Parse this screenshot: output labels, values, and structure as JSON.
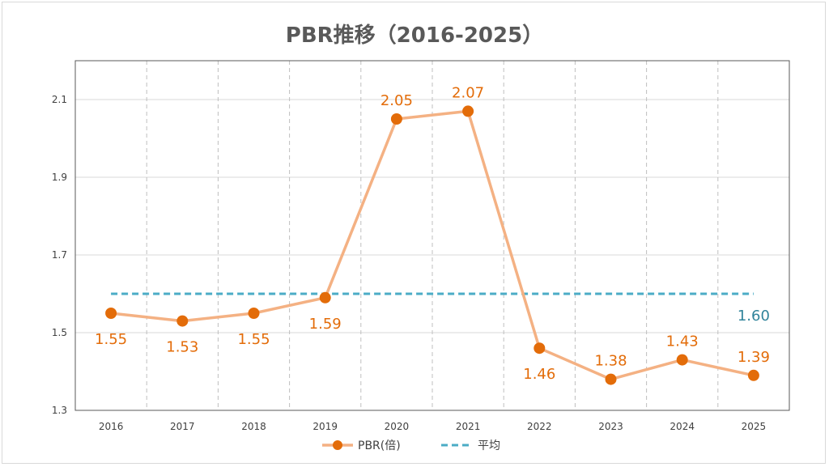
{
  "chart_data": {
    "type": "line",
    "title": "PBR推移（2016-2025）",
    "categories": [
      "2016",
      "2017",
      "2018",
      "2019",
      "2020",
      "2021",
      "2022",
      "2023",
      "2024",
      "2025"
    ],
    "series": [
      {
        "name": "PBR(倍)",
        "values": [
          1.55,
          1.53,
          1.55,
          1.59,
          2.05,
          2.07,
          1.46,
          1.38,
          1.43,
          1.39
        ],
        "color": "#f4b183",
        "marker_color": "#e36c09",
        "style": "solid"
      },
      {
        "name": "平均",
        "values": [
          1.6,
          1.6,
          1.6,
          1.6,
          1.6,
          1.6,
          1.6,
          1.6,
          1.6,
          1.6
        ],
        "color": "#4bacc6",
        "label_color": "#31849b",
        "style": "dashed"
      }
    ],
    "data_labels": [
      "1.55",
      "1.53",
      "1.55",
      "1.59",
      "2.05",
      "2.07",
      "1.46",
      "1.38",
      "1.43",
      "1.39"
    ],
    "avg_label": "1.60",
    "yticks": [
      "1.3",
      "1.5",
      "1.7",
      "1.9",
      "2.1"
    ],
    "ylim": [
      1.3,
      2.2
    ],
    "xlabel": "",
    "ylabel": "",
    "grid": {
      "horizontal": true,
      "vertical_dashed": true
    },
    "legend": "bottom"
  }
}
